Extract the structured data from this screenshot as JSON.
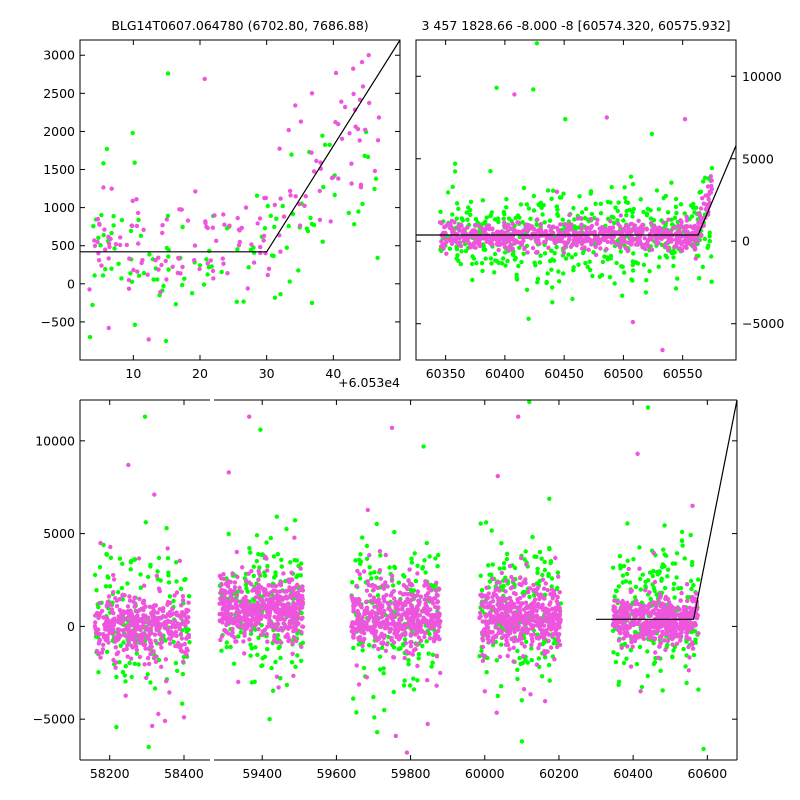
{
  "colors": {
    "series_green": "#00ff00",
    "series_magenta": "#ee55dd",
    "model_line": "#000000",
    "background": "#ffffff"
  },
  "chart_data": [
    {
      "id": "top-left",
      "type": "scatter",
      "title": "BLG14T0607.064780 (6702.80, 7686.88)",
      "xlabel": "",
      "ylabel": "",
      "offset_label": "+6.053e4",
      "xlim": [
        2,
        50
      ],
      "ylim": [
        -1000,
        3200
      ],
      "xticks": [
        10,
        20,
        30,
        40
      ],
      "yticks": [
        -500,
        0,
        500,
        1000,
        1500,
        2000,
        2500,
        3000
      ],
      "ytick_labels": [
        "−500",
        "0",
        "500",
        "1000",
        "1500",
        "2000",
        "2500",
        "3000"
      ],
      "grid": false,
      "model": {
        "x": [
          2,
          30,
          50
        ],
        "y": [
          420,
          420,
          3200
        ]
      },
      "series": [
        {
          "color": "green",
          "seed": 11,
          "n": 110,
          "xrange": [
            3,
            47
          ],
          "base": 420,
          "noise": 380,
          "rise_start": 30,
          "rise_end": 47,
          "rise_to": 1350,
          "outliers": [
            [
              15.2,
              2760
            ],
            [
              9.9,
              1980
            ],
            [
              10.2,
              1590
            ],
            [
              44.7,
              1680
            ],
            [
              46.4,
              1380
            ],
            [
              36.8,
              -250
            ],
            [
              3.5,
              -700
            ],
            [
              14.9,
              -750
            ]
          ]
        },
        {
          "color": "magenta",
          "seed": 23,
          "n": 150,
          "xrange": [
            3,
            47
          ],
          "base": 600,
          "noise": 320,
          "rise_start": 30,
          "rise_end": 47,
          "rise_to": 2500,
          "outliers": [
            [
              20.7,
              2690
            ],
            [
              45.3,
              3000
            ],
            [
              44.3,
              2910
            ],
            [
              36.8,
              2500
            ],
            [
              34.3,
              2340
            ],
            [
              41.2,
              2390
            ],
            [
              6.3,
              -580
            ],
            [
              12.3,
              -730
            ]
          ]
        }
      ]
    },
    {
      "id": "top-right",
      "type": "scatter",
      "title": "3 457 1828.66 -8.000 -8 [60574.320, 60575.932]",
      "xlabel": "",
      "ylabel": "",
      "xlim": [
        60325,
        60595
      ],
      "ylim": [
        -7200,
        12200
      ],
      "xticks": [
        60350,
        60400,
        60450,
        60500,
        60550
      ],
      "yticks": [
        -5000,
        0,
        5000,
        10000
      ],
      "ytick_labels": [
        "−5000",
        "0",
        "5000",
        "10000"
      ],
      "yaxis_side": "right",
      "grid": false,
      "model": {
        "x": [
          60325,
          60563,
          60595
        ],
        "y": [
          380,
          380,
          5800
        ]
      },
      "series": [
        {
          "color": "green",
          "seed": 37,
          "n": 520,
          "xrange": [
            60345,
            60575
          ],
          "base": 300,
          "noise": 1300,
          "rise_start": 60562,
          "rise_end": 60575,
          "rise_to": 1600,
          "outliers": [
            [
              60427,
              12000
            ],
            [
              60393,
              9300
            ],
            [
              60424,
              9200
            ],
            [
              60451,
              7400
            ],
            [
              60524,
              6500
            ],
            [
              60358,
              4700
            ],
            [
              60457,
              -3500
            ],
            [
              60420,
              -4700
            ],
            [
              60440,
              -3700
            ],
            [
              60499,
              -3300
            ],
            [
              60519,
              -3100
            ]
          ]
        },
        {
          "color": "magenta",
          "seed": 41,
          "n": 700,
          "xrange": [
            60345,
            60575
          ],
          "base": 300,
          "noise": 420,
          "rise_start": 60562,
          "rise_end": 60576,
          "rise_to": 3600,
          "outliers": [
            [
              60408,
              8900
            ],
            [
              60486,
              7500
            ],
            [
              60552,
              7400
            ],
            [
              60508,
              -4900
            ],
            [
              60533,
              -6600
            ],
            [
              60444,
              3000
            ]
          ]
        }
      ]
    },
    {
      "id": "bottom",
      "type": "scatter",
      "title": "",
      "xlabel": "",
      "ylabel": "",
      "broken_axis": true,
      "left_panel": {
        "xlim": [
          58120,
          58470
        ],
        "xticks": [
          58200,
          58400
        ]
      },
      "right_panel": {
        "xlim": [
          59270,
          60680
        ],
        "xticks": [
          59400,
          59600,
          59800,
          60000,
          60200,
          60400,
          60600
        ]
      },
      "ylim": [
        -7200,
        12200
      ],
      "yticks": [
        -5000,
        0,
        5000,
        10000
      ],
      "ytick_labels": [
        "−5000",
        "0",
        "5000",
        "10000"
      ],
      "grid": false,
      "model": {
        "x": [
          60300,
          60563,
          60680
        ],
        "y": [
          380,
          380,
          12200
        ]
      },
      "seasons": [
        {
          "xrange": [
            58160,
            58415
          ],
          "panel": "left",
          "seed": 51,
          "n_magenta": 420,
          "n_green": 160,
          "mag_base": 0,
          "mag_noise": 900,
          "green_noise": 1800,
          "outliers": [
            [
              58250,
              8700
            ],
            [
              58295,
              11300
            ],
            [
              58320,
              7100
            ],
            [
              58305,
              -6500
            ],
            [
              58400,
              -4900
            ]
          ]
        },
        {
          "xrange": [
            59285,
            59510
          ],
          "panel": "right",
          "seed": 61,
          "n_magenta": 520,
          "n_green": 200,
          "mag_base": 900,
          "mag_noise": 800,
          "green_noise": 1900,
          "outliers": [
            [
              59365,
              11300
            ],
            [
              59395,
              10600
            ],
            [
              59310,
              8300
            ],
            [
              59420,
              -5000
            ]
          ]
        },
        {
          "xrange": [
            59640,
            59880
          ],
          "panel": "right",
          "seed": 71,
          "n_magenta": 500,
          "n_green": 200,
          "mag_base": 500,
          "mag_noise": 850,
          "green_noise": 2100,
          "outliers": [
            [
              59750,
              10700
            ],
            [
              59835,
              9700
            ],
            [
              59790,
              -6800
            ],
            [
              59710,
              -5700
            ],
            [
              59760,
              -5900
            ]
          ]
        },
        {
          "xrange": [
            59985,
            60205
          ],
          "panel": "right",
          "seed": 81,
          "n_magenta": 500,
          "n_green": 200,
          "mag_base": 500,
          "mag_noise": 850,
          "green_noise": 2000,
          "outliers": [
            [
              60090,
              11300
            ],
            [
              60120,
              12100
            ],
            [
              60035,
              8100
            ],
            [
              60100,
              -6200
            ],
            [
              60000,
              -3500
            ]
          ]
        },
        {
          "xrange": [
            60345,
            60576
          ],
          "panel": "right",
          "seed": 91,
          "n_magenta": 520,
          "n_green": 220,
          "mag_base": 350,
          "mag_noise": 600,
          "green_noise": 1900,
          "outliers": [
            [
              60412,
              9300
            ],
            [
              60440,
              11800
            ],
            [
              60560,
              6500
            ],
            [
              60590,
              -6600
            ],
            [
              60420,
              -3500
            ]
          ]
        }
      ]
    }
  ]
}
